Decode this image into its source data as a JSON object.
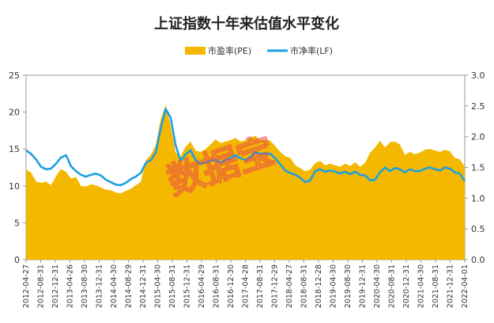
{
  "chart_data": {
    "type": "area+line",
    "title": "上证指数十年来估值水平变化",
    "watermark": "数据宝",
    "legend": [
      {
        "label": "市盈率(PE)",
        "color": "#f5b800",
        "kind": "area"
      },
      {
        "label": "市净率(LF)",
        "color": "#1ea0e0",
        "kind": "line"
      }
    ],
    "legend_position": "top-center",
    "y_left": {
      "min": 0,
      "max": 25,
      "ticks": [
        "0",
        "5",
        "10",
        "15",
        "20",
        "25"
      ]
    },
    "y_right": {
      "min": 0,
      "max": 3.0,
      "ticks": [
        "0.0",
        "0.5",
        "1.0",
        "1.5",
        "2.0",
        "2.5",
        "3.0"
      ]
    },
    "x_ticks": [
      "2012-04-27",
      "2012-08-31",
      "2012-12-31",
      "2013-04-26",
      "2013-08-30",
      "2013-12-31",
      "2014-04-30",
      "2014-08-29",
      "2014-12-31",
      "2015-04-30",
      "2015-08-31",
      "2015-12-31",
      "2016-04-29",
      "2016-08-31",
      "2016-12-30",
      "2017-04-28",
      "2017-08-31",
      "2017-12-29",
      "2018-04-27",
      "2018-08-31",
      "2018-12-28",
      "2019-04-30",
      "2019-08-30",
      "2019-12-31",
      "2020-04-30",
      "2020-08-31",
      "2020-12-31",
      "2021-04-30",
      "2021-08-31",
      "2021-12-31",
      "2022-04-01"
    ],
    "series": [
      {
        "name": "市盈率(PE)",
        "axis": "left",
        "values": [
          12.2,
          11.8,
          10.6,
          10.4,
          10.6,
          10.1,
          11.3,
          12.3,
          11.9,
          11.0,
          11.2,
          10.0,
          9.9,
          10.2,
          10.1,
          9.8,
          9.5,
          9.4,
          9.1,
          9.0,
          9.3,
          9.6,
          10.1,
          10.5,
          13.5,
          14.2,
          15.5,
          19.0,
          21.0,
          18.2,
          14.5,
          14.0,
          15.3,
          16.0,
          14.8,
          14.6,
          15.0,
          15.6,
          16.3,
          15.8,
          16.0,
          16.2,
          16.5,
          16.0,
          16.2,
          16.5,
          16.8,
          16.2,
          16.3,
          16.1,
          15.4,
          14.6,
          14.0,
          13.8,
          12.8,
          12.4,
          12.0,
          12.2,
          13.1,
          13.4,
          12.8,
          13.0,
          12.8,
          12.6,
          13.0,
          12.7,
          13.2,
          12.6,
          13.1,
          14.5,
          15.2,
          16.1,
          15.2,
          15.9,
          16.0,
          15.6,
          14.2,
          14.6,
          14.3,
          14.5,
          14.9,
          15.0,
          14.8,
          14.6,
          14.9,
          14.7,
          13.8,
          13.6,
          12.6
        ]
      },
      {
        "name": "市净率(LF)",
        "axis": "right",
        "values": [
          1.78,
          1.72,
          1.63,
          1.51,
          1.47,
          1.48,
          1.56,
          1.66,
          1.7,
          1.52,
          1.44,
          1.38,
          1.35,
          1.38,
          1.4,
          1.37,
          1.3,
          1.26,
          1.22,
          1.21,
          1.25,
          1.31,
          1.35,
          1.41,
          1.57,
          1.62,
          1.74,
          2.13,
          2.45,
          2.31,
          1.86,
          1.61,
          1.71,
          1.78,
          1.62,
          1.56,
          1.58,
          1.61,
          1.62,
          1.58,
          1.62,
          1.65,
          1.7,
          1.65,
          1.62,
          1.67,
          1.75,
          1.72,
          1.73,
          1.72,
          1.65,
          1.55,
          1.45,
          1.41,
          1.38,
          1.33,
          1.26,
          1.29,
          1.44,
          1.47,
          1.43,
          1.45,
          1.43,
          1.4,
          1.43,
          1.39,
          1.43,
          1.38,
          1.37,
          1.29,
          1.3,
          1.42,
          1.5,
          1.44,
          1.49,
          1.47,
          1.42,
          1.47,
          1.44,
          1.44,
          1.48,
          1.5,
          1.47,
          1.45,
          1.5,
          1.48,
          1.42,
          1.4,
          1.28
        ]
      }
    ]
  }
}
